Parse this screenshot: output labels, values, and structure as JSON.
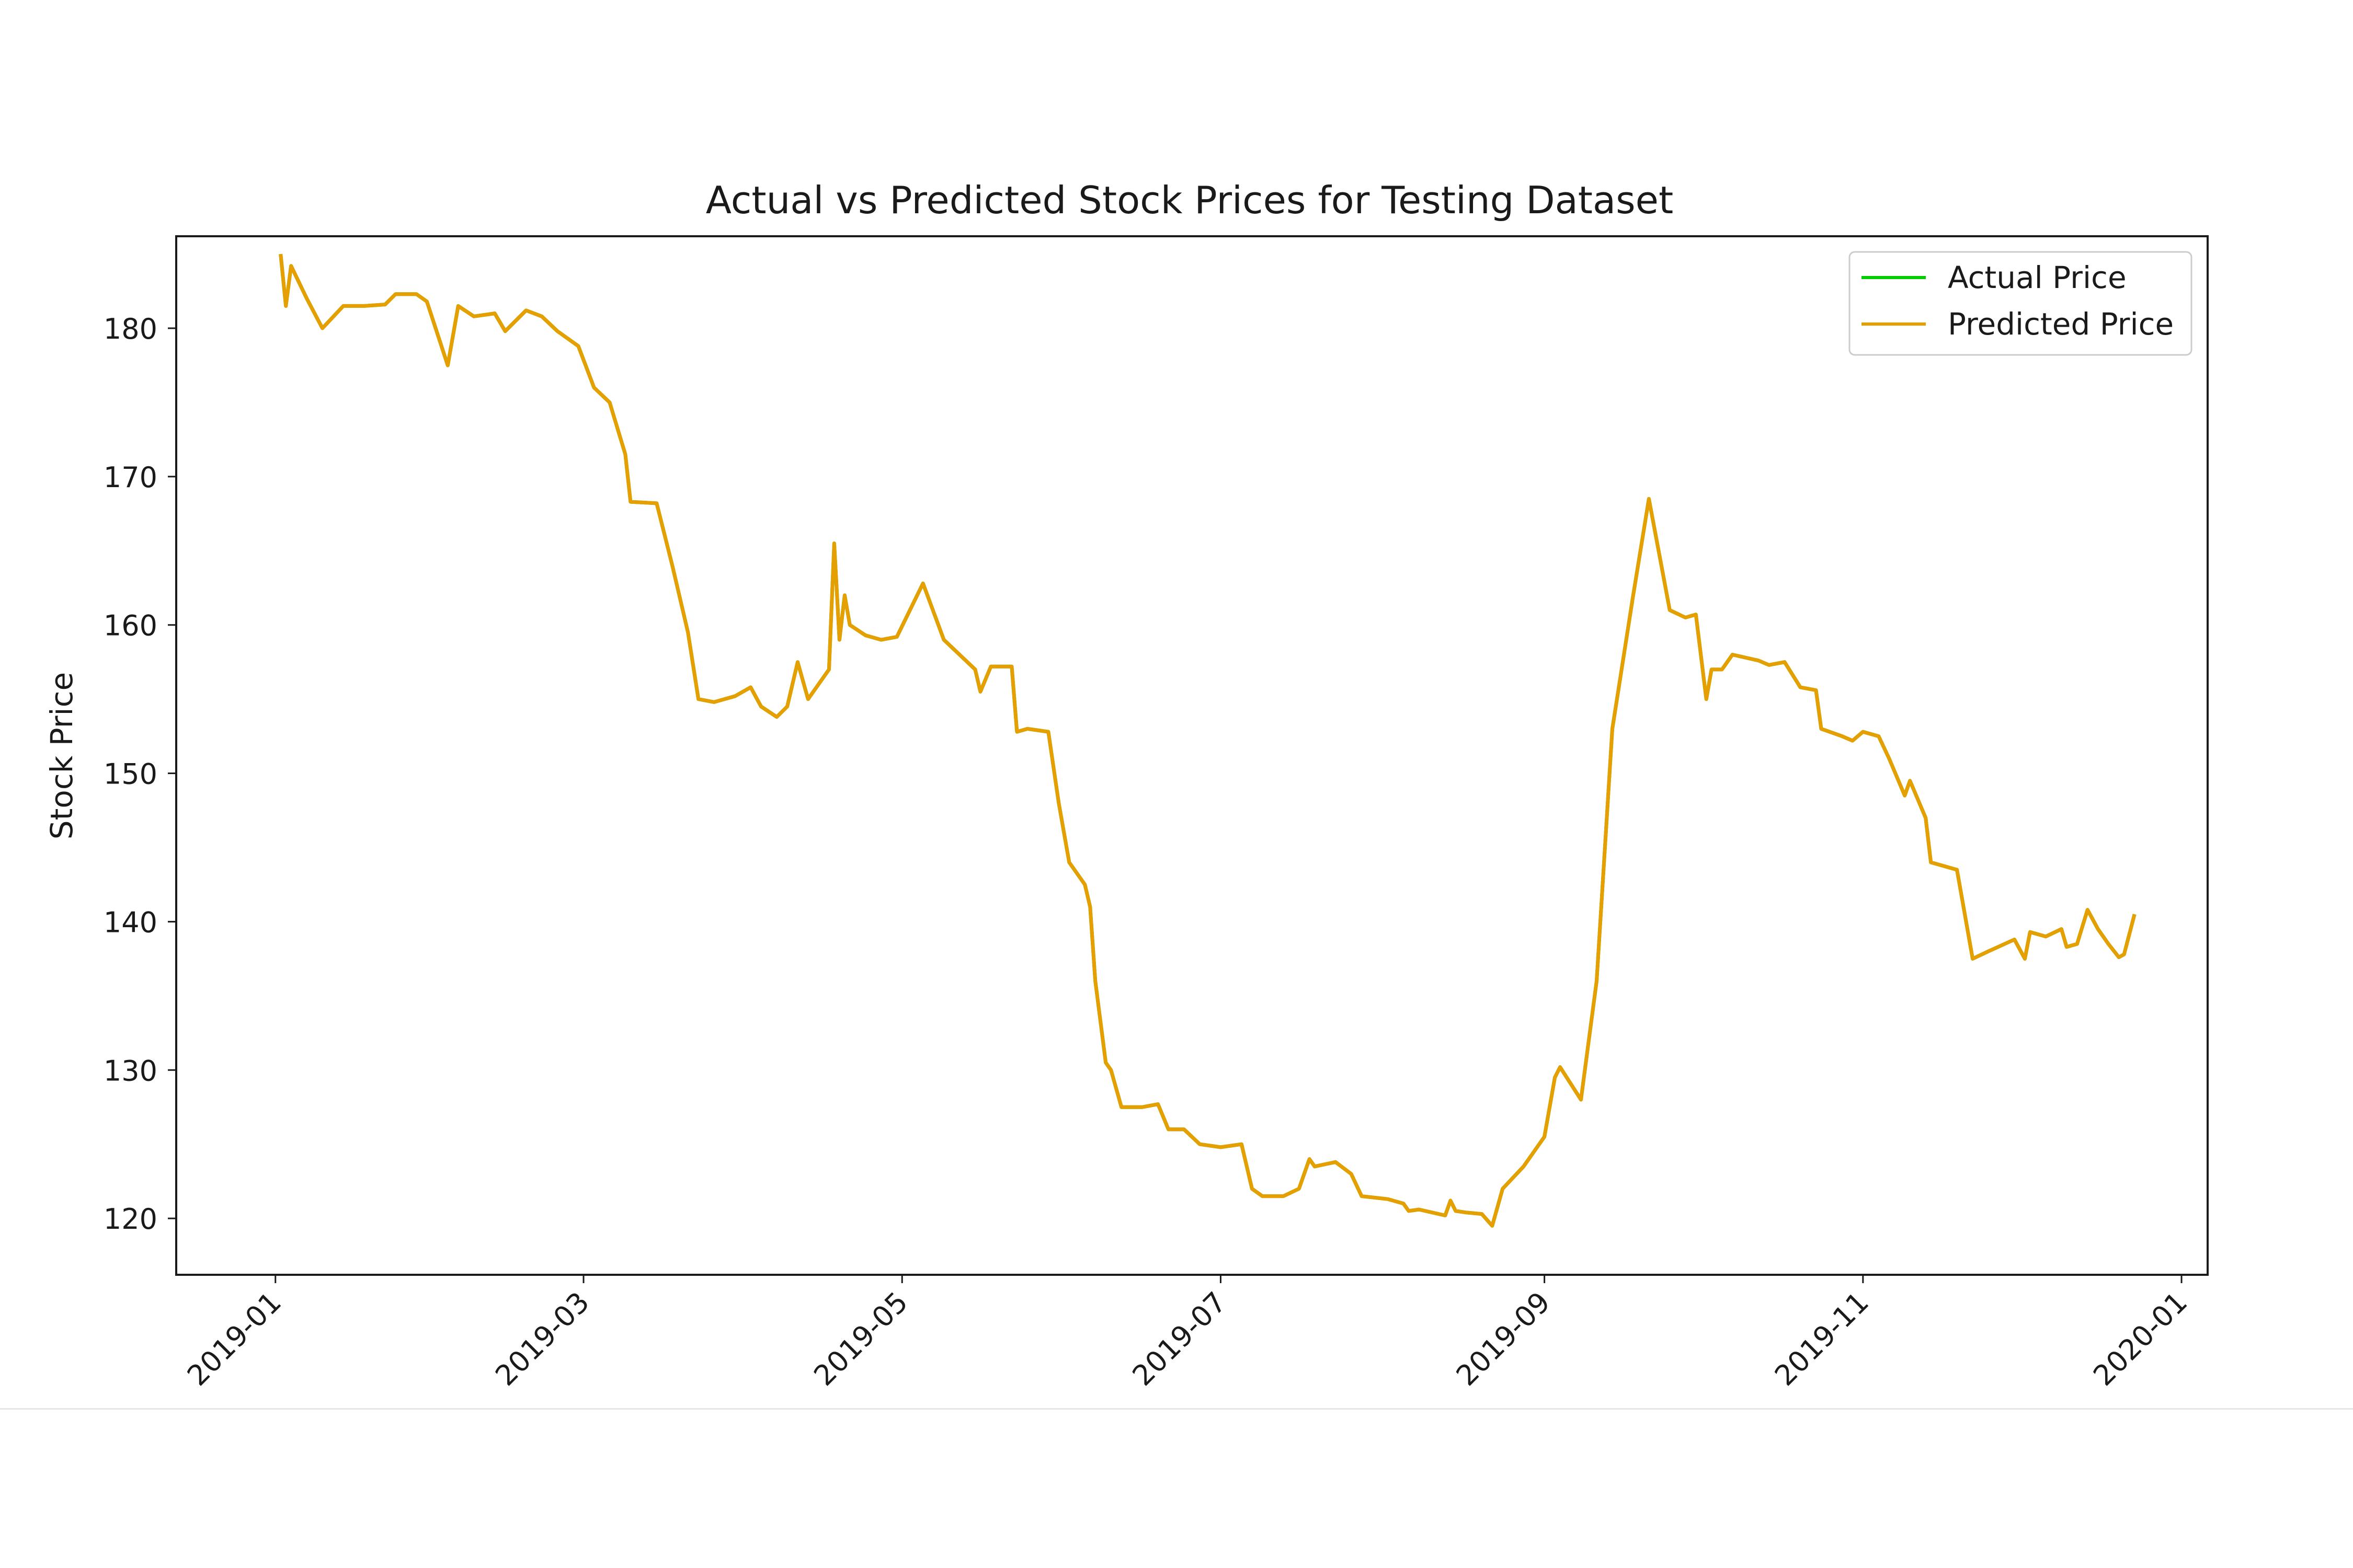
{
  "chart_data": {
    "type": "line",
    "title": "Actual vs Predicted Stock Prices for Testing Dataset",
    "xlabel": "",
    "ylabel": "Stock Price",
    "xlim": [
      "2018-12-13",
      "2020-01-06"
    ],
    "ylim": [
      116.2,
      186.2
    ],
    "grid": false,
    "legend_position": "top-right",
    "x_ticks": [
      "2019-01",
      "2019-03",
      "2019-05",
      "2019-07",
      "2019-09",
      "2019-11",
      "2020-01"
    ],
    "y_ticks": [
      120,
      130,
      140,
      150,
      160,
      170,
      180
    ],
    "series": [
      {
        "name": "Actual Price",
        "color": "#00cc00",
        "points": [
          [
            "2019-01-02",
            185.0
          ],
          [
            "2019-01-03",
            181.5
          ],
          [
            "2019-01-04",
            184.2
          ],
          [
            "2019-01-07",
            182.0
          ],
          [
            "2019-01-10",
            180.0
          ],
          [
            "2019-01-14",
            181.5
          ],
          [
            "2019-01-18",
            181.5
          ],
          [
            "2019-01-22",
            181.6
          ],
          [
            "2019-01-24",
            182.3
          ],
          [
            "2019-01-28",
            182.3
          ],
          [
            "2019-01-30",
            181.8
          ],
          [
            "2019-02-03",
            177.5
          ],
          [
            "2019-02-05",
            181.5
          ],
          [
            "2019-02-08",
            180.8
          ],
          [
            "2019-02-12",
            181.0
          ],
          [
            "2019-02-14",
            179.8
          ],
          [
            "2019-02-18",
            181.2
          ],
          [
            "2019-02-21",
            180.8
          ],
          [
            "2019-02-24",
            179.8
          ],
          [
            "2019-02-28",
            178.8
          ],
          [
            "2019-03-03",
            176.0
          ],
          [
            "2019-03-06",
            175.0
          ],
          [
            "2019-03-09",
            171.5
          ],
          [
            "2019-03-10",
            168.3
          ],
          [
            "2019-03-15",
            168.2
          ],
          [
            "2019-03-18",
            164.0
          ],
          [
            "2019-03-21",
            159.5
          ],
          [
            "2019-03-23",
            155.0
          ],
          [
            "2019-03-26",
            154.8
          ],
          [
            "2019-03-30",
            155.2
          ],
          [
            "2019-04-02",
            155.8
          ],
          [
            "2019-04-04",
            154.5
          ],
          [
            "2019-04-07",
            153.8
          ],
          [
            "2019-04-09",
            154.5
          ],
          [
            "2019-04-11",
            157.5
          ],
          [
            "2019-04-13",
            155.0
          ],
          [
            "2019-04-17",
            157.0
          ],
          [
            "2019-04-18",
            165.5
          ],
          [
            "2019-04-19",
            159.0
          ],
          [
            "2019-04-20",
            162.0
          ],
          [
            "2019-04-21",
            160.0
          ],
          [
            "2019-04-24",
            159.3
          ],
          [
            "2019-04-27",
            159.0
          ],
          [
            "2019-04-30",
            159.2
          ],
          [
            "2019-05-05",
            162.8
          ],
          [
            "2019-05-09",
            159.0
          ],
          [
            "2019-05-15",
            157.0
          ],
          [
            "2019-05-16",
            155.5
          ],
          [
            "2019-05-18",
            157.2
          ],
          [
            "2019-05-22",
            157.2
          ],
          [
            "2019-05-23",
            152.8
          ],
          [
            "2019-05-25",
            153.0
          ],
          [
            "2019-05-29",
            152.8
          ],
          [
            "2019-05-31",
            148.0
          ],
          [
            "2019-06-02",
            144.0
          ],
          [
            "2019-06-05",
            142.5
          ],
          [
            "2019-06-06",
            141.0
          ],
          [
            "2019-06-07",
            136.0
          ],
          [
            "2019-06-09",
            130.5
          ],
          [
            "2019-06-10",
            130.0
          ],
          [
            "2019-06-12",
            127.5
          ],
          [
            "2019-06-16",
            127.5
          ],
          [
            "2019-06-19",
            127.7
          ],
          [
            "2019-06-21",
            126.0
          ],
          [
            "2019-06-24",
            126.0
          ],
          [
            "2019-06-27",
            125.0
          ],
          [
            "2019-07-01",
            124.8
          ],
          [
            "2019-07-05",
            125.0
          ],
          [
            "2019-07-07",
            122.0
          ],
          [
            "2019-07-09",
            121.5
          ],
          [
            "2019-07-13",
            121.5
          ],
          [
            "2019-07-16",
            122.0
          ],
          [
            "2019-07-18",
            124.0
          ],
          [
            "2019-07-19",
            123.5
          ],
          [
            "2019-07-23",
            123.8
          ],
          [
            "2019-07-26",
            123.0
          ],
          [
            "2019-07-28",
            121.5
          ],
          [
            "2019-08-02",
            121.3
          ],
          [
            "2019-08-05",
            121.0
          ],
          [
            "2019-08-06",
            120.5
          ],
          [
            "2019-08-08",
            120.6
          ],
          [
            "2019-08-13",
            120.2
          ],
          [
            "2019-08-14",
            121.2
          ],
          [
            "2019-08-15",
            120.5
          ],
          [
            "2019-08-17",
            120.4
          ],
          [
            "2019-08-20",
            120.3
          ],
          [
            "2019-08-22",
            119.5
          ],
          [
            "2019-08-24",
            122.0
          ],
          [
            "2019-08-28",
            123.5
          ],
          [
            "2019-09-01",
            125.5
          ],
          [
            "2019-09-03",
            129.5
          ],
          [
            "2019-09-04",
            130.2
          ],
          [
            "2019-09-08",
            128.0
          ],
          [
            "2019-09-11",
            136.0
          ],
          [
            "2019-09-14",
            153.0
          ],
          [
            "2019-09-18",
            162.0
          ],
          [
            "2019-09-21",
            168.5
          ],
          [
            "2019-09-25",
            161.0
          ],
          [
            "2019-09-28",
            160.5
          ],
          [
            "2019-09-30",
            160.7
          ],
          [
            "2019-10-02",
            155.0
          ],
          [
            "2019-10-03",
            157.0
          ],
          [
            "2019-10-05",
            157.0
          ],
          [
            "2019-10-07",
            158.0
          ],
          [
            "2019-10-12",
            157.6
          ],
          [
            "2019-10-14",
            157.3
          ],
          [
            "2019-10-17",
            157.5
          ],
          [
            "2019-10-20",
            155.8
          ],
          [
            "2019-10-23",
            155.6
          ],
          [
            "2019-10-24",
            153.0
          ],
          [
            "2019-10-28",
            152.5
          ],
          [
            "2019-10-30",
            152.2
          ],
          [
            "2019-11-01",
            152.8
          ],
          [
            "2019-11-04",
            152.5
          ],
          [
            "2019-11-06",
            151.0
          ],
          [
            "2019-11-09",
            148.5
          ],
          [
            "2019-11-10",
            149.5
          ],
          [
            "2019-11-13",
            147.0
          ],
          [
            "2019-11-14",
            144.0
          ],
          [
            "2019-11-19",
            143.5
          ],
          [
            "2019-11-22",
            137.5
          ],
          [
            "2019-11-25",
            138.0
          ],
          [
            "2019-11-30",
            138.8
          ],
          [
            "2019-12-02",
            137.5
          ],
          [
            "2019-12-03",
            139.3
          ],
          [
            "2019-12-06",
            139.0
          ],
          [
            "2019-12-09",
            139.5
          ],
          [
            "2019-12-10",
            138.3
          ],
          [
            "2019-12-12",
            138.5
          ],
          [
            "2019-12-14",
            140.8
          ],
          [
            "2019-12-16",
            139.5
          ],
          [
            "2019-12-18",
            138.5
          ],
          [
            "2019-12-20",
            137.6
          ],
          [
            "2019-12-21",
            137.8
          ],
          [
            "2019-12-23",
            140.5
          ]
        ]
      },
      {
        "name": "Predicted Price",
        "color": "#e69f00",
        "points": [
          [
            "2019-01-02",
            185.0
          ],
          [
            "2019-01-03",
            181.5
          ],
          [
            "2019-01-04",
            184.2
          ],
          [
            "2019-01-07",
            182.0
          ],
          [
            "2019-01-10",
            180.0
          ],
          [
            "2019-01-14",
            181.5
          ],
          [
            "2019-01-18",
            181.5
          ],
          [
            "2019-01-22",
            181.6
          ],
          [
            "2019-01-24",
            182.3
          ],
          [
            "2019-01-28",
            182.3
          ],
          [
            "2019-01-30",
            181.8
          ],
          [
            "2019-02-03",
            177.5
          ],
          [
            "2019-02-05",
            181.5
          ],
          [
            "2019-02-08",
            180.8
          ],
          [
            "2019-02-12",
            181.0
          ],
          [
            "2019-02-14",
            179.8
          ],
          [
            "2019-02-18",
            181.2
          ],
          [
            "2019-02-21",
            180.8
          ],
          [
            "2019-02-24",
            179.8
          ],
          [
            "2019-02-28",
            178.8
          ],
          [
            "2019-03-03",
            176.0
          ],
          [
            "2019-03-06",
            175.0
          ],
          [
            "2019-03-09",
            171.5
          ],
          [
            "2019-03-10",
            168.3
          ],
          [
            "2019-03-15",
            168.2
          ],
          [
            "2019-03-18",
            164.0
          ],
          [
            "2019-03-21",
            159.5
          ],
          [
            "2019-03-23",
            155.0
          ],
          [
            "2019-03-26",
            154.8
          ],
          [
            "2019-03-30",
            155.2
          ],
          [
            "2019-04-02",
            155.8
          ],
          [
            "2019-04-04",
            154.5
          ],
          [
            "2019-04-07",
            153.8
          ],
          [
            "2019-04-09",
            154.5
          ],
          [
            "2019-04-11",
            157.5
          ],
          [
            "2019-04-13",
            155.0
          ],
          [
            "2019-04-17",
            157.0
          ],
          [
            "2019-04-18",
            165.5
          ],
          [
            "2019-04-19",
            159.0
          ],
          [
            "2019-04-20",
            162.0
          ],
          [
            "2019-04-21",
            160.0
          ],
          [
            "2019-04-24",
            159.3
          ],
          [
            "2019-04-27",
            159.0
          ],
          [
            "2019-04-30",
            159.2
          ],
          [
            "2019-05-05",
            162.8
          ],
          [
            "2019-05-09",
            159.0
          ],
          [
            "2019-05-15",
            157.0
          ],
          [
            "2019-05-16",
            155.5
          ],
          [
            "2019-05-18",
            157.2
          ],
          [
            "2019-05-22",
            157.2
          ],
          [
            "2019-05-23",
            152.8
          ],
          [
            "2019-05-25",
            153.0
          ],
          [
            "2019-05-29",
            152.8
          ],
          [
            "2019-05-31",
            148.0
          ],
          [
            "2019-06-02",
            144.0
          ],
          [
            "2019-06-05",
            142.5
          ],
          [
            "2019-06-06",
            141.0
          ],
          [
            "2019-06-07",
            136.0
          ],
          [
            "2019-06-09",
            130.5
          ],
          [
            "2019-06-10",
            130.0
          ],
          [
            "2019-06-12",
            127.5
          ],
          [
            "2019-06-16",
            127.5
          ],
          [
            "2019-06-19",
            127.7
          ],
          [
            "2019-06-21",
            126.0
          ],
          [
            "2019-06-24",
            126.0
          ],
          [
            "2019-06-27",
            125.0
          ],
          [
            "2019-07-01",
            124.8
          ],
          [
            "2019-07-05",
            125.0
          ],
          [
            "2019-07-07",
            122.0
          ],
          [
            "2019-07-09",
            121.5
          ],
          [
            "2019-07-13",
            121.5
          ],
          [
            "2019-07-16",
            122.0
          ],
          [
            "2019-07-18",
            124.0
          ],
          [
            "2019-07-19",
            123.5
          ],
          [
            "2019-07-23",
            123.8
          ],
          [
            "2019-07-26",
            123.0
          ],
          [
            "2019-07-28",
            121.5
          ],
          [
            "2019-08-02",
            121.3
          ],
          [
            "2019-08-05",
            121.0
          ],
          [
            "2019-08-06",
            120.5
          ],
          [
            "2019-08-08",
            120.6
          ],
          [
            "2019-08-13",
            120.2
          ],
          [
            "2019-08-14",
            121.2
          ],
          [
            "2019-08-15",
            120.5
          ],
          [
            "2019-08-17",
            120.4
          ],
          [
            "2019-08-20",
            120.3
          ],
          [
            "2019-08-22",
            119.5
          ],
          [
            "2019-08-24",
            122.0
          ],
          [
            "2019-08-28",
            123.5
          ],
          [
            "2019-09-01",
            125.5
          ],
          [
            "2019-09-03",
            129.5
          ],
          [
            "2019-09-04",
            130.2
          ],
          [
            "2019-09-08",
            128.0
          ],
          [
            "2019-09-11",
            136.0
          ],
          [
            "2019-09-14",
            153.0
          ],
          [
            "2019-09-18",
            162.0
          ],
          [
            "2019-09-21",
            168.5
          ],
          [
            "2019-09-25",
            161.0
          ],
          [
            "2019-09-28",
            160.5
          ],
          [
            "2019-09-30",
            160.7
          ],
          [
            "2019-10-02",
            155.0
          ],
          [
            "2019-10-03",
            157.0
          ],
          [
            "2019-10-05",
            157.0
          ],
          [
            "2019-10-07",
            158.0
          ],
          [
            "2019-10-12",
            157.6
          ],
          [
            "2019-10-14",
            157.3
          ],
          [
            "2019-10-17",
            157.5
          ],
          [
            "2019-10-20",
            155.8
          ],
          [
            "2019-10-23",
            155.6
          ],
          [
            "2019-10-24",
            153.0
          ],
          [
            "2019-10-28",
            152.5
          ],
          [
            "2019-10-30",
            152.2
          ],
          [
            "2019-11-01",
            152.8
          ],
          [
            "2019-11-04",
            152.5
          ],
          [
            "2019-11-06",
            151.0
          ],
          [
            "2019-11-09",
            148.5
          ],
          [
            "2019-11-10",
            149.5
          ],
          [
            "2019-11-13",
            147.0
          ],
          [
            "2019-11-14",
            144.0
          ],
          [
            "2019-11-19",
            143.5
          ],
          [
            "2019-11-22",
            137.5
          ],
          [
            "2019-11-25",
            138.0
          ],
          [
            "2019-11-30",
            138.8
          ],
          [
            "2019-12-02",
            137.5
          ],
          [
            "2019-12-03",
            139.3
          ],
          [
            "2019-12-06",
            139.0
          ],
          [
            "2019-12-09",
            139.5
          ],
          [
            "2019-12-10",
            138.3
          ],
          [
            "2019-12-12",
            138.5
          ],
          [
            "2019-12-14",
            140.8
          ],
          [
            "2019-12-16",
            139.5
          ],
          [
            "2019-12-18",
            138.5
          ],
          [
            "2019-12-20",
            137.6
          ],
          [
            "2019-12-21",
            137.8
          ],
          [
            "2019-12-23",
            140.5
          ]
        ]
      }
    ]
  }
}
